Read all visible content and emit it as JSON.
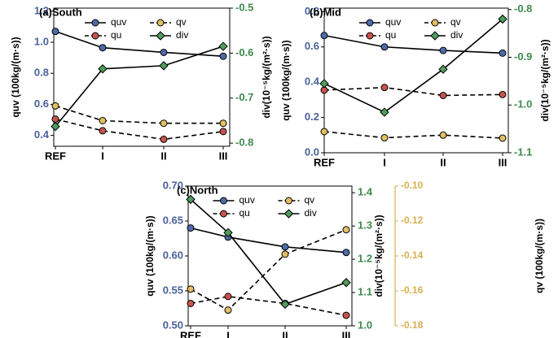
{
  "colors": {
    "quv": "#1f2d6b",
    "div": "#3f8a4e",
    "qv_axis": "#d8b04f",
    "left_axis": "#4a6199",
    "right_axis": "#3f8a4e",
    "marker_quv": "#4e6aa8",
    "marker_qu": "#c8534d",
    "marker_qv": "#e3be63",
    "marker_div": "#4f9d5c"
  },
  "chart_data": [
    {
      "type": "line",
      "panel": "(a)",
      "title": "South",
      "categories": [
        "REF",
        "I",
        "II",
        "III"
      ],
      "ylabel": "quv (100kg/(m·s))",
      "ylabel_right": "div(10⁻⁵kg/(m²·s))",
      "ylim": [
        0.33,
        1.22
      ],
      "yticks": [
        "0.4",
        "0.6",
        "0.8",
        "1.0",
        "1.2"
      ],
      "yticks_values": [
        0.4,
        0.6,
        0.8,
        1.0,
        1.2
      ],
      "ylim_right": [
        -0.807,
        -0.5
      ],
      "yticks_right": [
        "-0.8",
        "-0.7",
        "-0.6",
        "-0.5"
      ],
      "yticks_right_values": [
        -0.8,
        -0.7,
        -0.6,
        -0.5
      ],
      "legend_position": "top-center",
      "series": [
        {
          "name": "quv",
          "axis": "left",
          "style": "solid",
          "marker": "circle",
          "values": [
            1.07,
            0.965,
            0.935,
            0.91
          ]
        },
        {
          "name": "qu",
          "axis": "left",
          "style": "dashed",
          "marker": "circle",
          "values": [
            0.505,
            0.43,
            0.375,
            0.425
          ]
        },
        {
          "name": "qv",
          "axis": "left",
          "style": "dashed",
          "marker": "circle",
          "values": [
            0.59,
            0.495,
            0.478,
            0.478
          ]
        },
        {
          "name": "div",
          "axis": "right",
          "style": "solid",
          "marker": "diamond",
          "values": [
            -0.763,
            -0.635,
            -0.628,
            -0.585
          ]
        }
      ]
    },
    {
      "type": "line",
      "panel": "(b)",
      "title": "Mid",
      "categories": [
        "REF",
        "I",
        "II",
        "III"
      ],
      "ylabel": "quv (100kg/(m·s))",
      "ylabel_right": "div(10⁻⁵kg/(m²·s))",
      "ylim": [
        0.0,
        0.82
      ],
      "yticks": [
        "0.0",
        "0.2",
        "0.4",
        "0.6",
        "0.8"
      ],
      "yticks_values": [
        0.0,
        0.2,
        0.4,
        0.6,
        0.8
      ],
      "ylim_right": [
        -1.1,
        -0.797
      ],
      "yticks_right": [
        "-1.1",
        "-1.0",
        "-0.9",
        "-0.8"
      ],
      "yticks_right_values": [
        -1.1,
        -1.0,
        -0.9,
        -0.8
      ],
      "legend_position": "top-center",
      "series": [
        {
          "name": "quv",
          "axis": "left",
          "style": "solid",
          "marker": "circle",
          "values": [
            0.665,
            0.6,
            0.58,
            0.565
          ]
        },
        {
          "name": "qu",
          "axis": "left",
          "style": "dashed",
          "marker": "circle",
          "values": [
            0.355,
            0.37,
            0.325,
            0.33
          ]
        },
        {
          "name": "qv",
          "axis": "left",
          "style": "dashed",
          "marker": "circle",
          "values": [
            0.12,
            0.085,
            0.1,
            0.083
          ]
        },
        {
          "name": "div",
          "axis": "right",
          "style": "solid",
          "marker": "diamond",
          "values": [
            -0.955,
            -1.015,
            -0.925,
            -0.82
          ]
        }
      ]
    },
    {
      "type": "line",
      "panel": "(c)",
      "title": "North",
      "categories": [
        "REF",
        "I",
        "II",
        "III"
      ],
      "ylabel": "quv (100kg/(m·s))",
      "ylabel_right": "div(10⁻⁵kg/(m²·s))",
      "ylabel_right2": "qv (100kg/(m·s))",
      "ylim": [
        0.5,
        0.7
      ],
      "yticks": [
        "0.50",
        "0.55",
        "0.60",
        "0.65",
        "0.70"
      ],
      "yticks_values": [
        0.5,
        0.55,
        0.6,
        0.65,
        0.7
      ],
      "ylim_right": [
        1.0,
        1.42
      ],
      "yticks_right": [
        "1.0",
        "1.1",
        "1.2",
        "1.3",
        "1.4"
      ],
      "yticks_right_values": [
        1.0,
        1.1,
        1.2,
        1.3,
        1.4
      ],
      "ylim_right2": [
        -0.18,
        -0.1
      ],
      "yticks_right2": [
        "-0.18",
        "-0.16",
        "-0.14",
        "-0.12",
        "-0.10"
      ],
      "yticks_right2_values": [
        -0.18,
        -0.16,
        -0.14,
        -0.12,
        -0.1
      ],
      "legend_position": "top-center",
      "series": [
        {
          "name": "quv",
          "axis": "left",
          "style": "solid",
          "marker": "circle",
          "values": [
            0.64,
            0.627,
            0.613,
            0.605
          ]
        },
        {
          "name": "qu",
          "axis": "left",
          "style": "dashed",
          "marker": "circle",
          "values": [
            0.532,
            0.542,
            0.532,
            0.515
          ]
        },
        {
          "name": "qv",
          "axis": "right2",
          "style": "dashed",
          "marker": "circle",
          "values": [
            -0.159,
            -0.171,
            -0.139,
            -0.125
          ]
        },
        {
          "name": "div",
          "axis": "right",
          "style": "solid",
          "marker": "diamond",
          "values": [
            1.38,
            1.28,
            1.065,
            1.13
          ]
        }
      ]
    }
  ]
}
